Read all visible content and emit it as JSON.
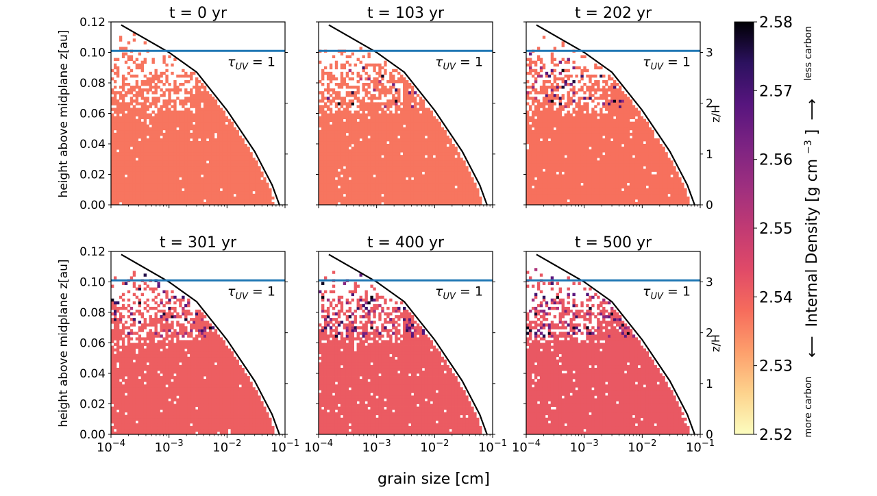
{
  "figure": {
    "xlabel": "grain size [cm]",
    "ylabel": "height above midplane z[au]",
    "right_ylabel": "z/H",
    "tau_label": "τ",
    "tau_sub": "UV",
    "tau_eq": " = 1"
  },
  "chart_data": {
    "type": "heatmap",
    "xscale": "log",
    "xlim": [
      0.0001,
      0.1
    ],
    "xticks": [
      {
        "value": 0.0001,
        "base": "10",
        "exp": "−4"
      },
      {
        "value": 0.001,
        "base": "10",
        "exp": "−3"
      },
      {
        "value": 0.01,
        "base": "10",
        "exp": "−2"
      },
      {
        "value": 0.1,
        "base": "10",
        "exp": "−1"
      }
    ],
    "ylim": [
      0,
      0.12
    ],
    "yticks": [
      "0.00",
      "0.02",
      "0.04",
      "0.06",
      "0.08",
      "0.10",
      "0.12"
    ],
    "zH_per_au": 30,
    "zH_ticks": [
      "0",
      "1",
      "2",
      "3"
    ],
    "tau_uv_height_au": 0.101,
    "panels": [
      {
        "title": "t = 0 yr",
        "time_yr": 0,
        "bulk_density": 2.537,
        "scatter_dark_fraction": 0.0
      },
      {
        "title": "t = 103 yr",
        "time_yr": 103,
        "bulk_density": 2.537,
        "scatter_dark_fraction": 0.08
      },
      {
        "title": "t = 202 yr",
        "time_yr": 202,
        "bulk_density": 2.5375,
        "scatter_dark_fraction": 0.12
      },
      {
        "title": "t = 301 yr",
        "time_yr": 301,
        "bulk_density": 2.5405,
        "scatter_dark_fraction": 0.18
      },
      {
        "title": "t = 400 yr",
        "time_yr": 400,
        "bulk_density": 2.541,
        "scatter_dark_fraction": 0.2
      },
      {
        "title": "t = 500 yr",
        "time_yr": 500,
        "bulk_density": 2.5415,
        "scatter_dark_fraction": 0.22
      }
    ],
    "boundary_curve": {
      "description": "maximum grain size at height z",
      "points": [
        [
          0.00015,
          0.118
        ],
        [
          0.001,
          0.1
        ],
        [
          0.003,
          0.087
        ],
        [
          0.01,
          0.062
        ],
        [
          0.03,
          0.035
        ],
        [
          0.06,
          0.013
        ],
        [
          0.08,
          0.0
        ]
      ]
    },
    "colorbar": {
      "label": "Internal Density [g cm",
      "label_sup": "−3",
      "label_end": "]",
      "min": 2.52,
      "max": 2.58,
      "ticks": [
        "2.52",
        "2.53",
        "2.54",
        "2.55",
        "2.56",
        "2.57",
        "2.58"
      ],
      "colormap": "magma_r",
      "low_note": "more carbon",
      "high_note": "less carbon",
      "arrow_left": "⟵",
      "arrow_right": "⟶"
    }
  }
}
